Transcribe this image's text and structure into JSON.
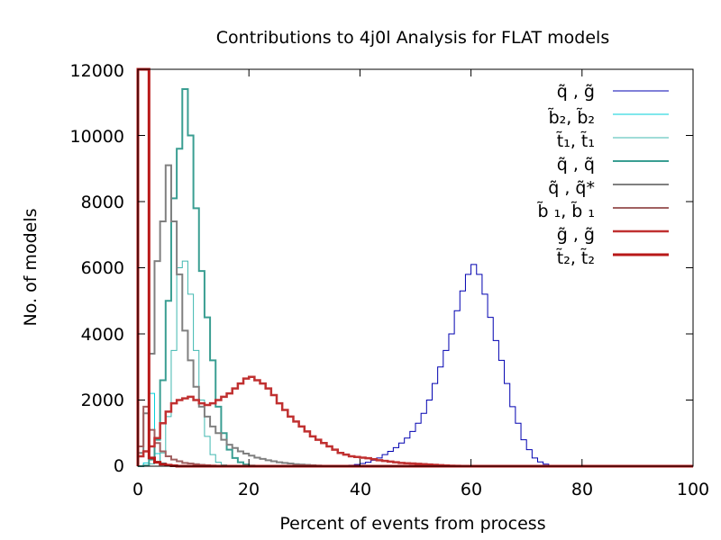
{
  "chart_data": {
    "type": "histogram",
    "title": "Contributions to 4j0l Analysis for FLAT models",
    "xlabel": "Percent of events from process",
    "ylabel": "No. of models",
    "xlim": [
      0,
      100
    ],
    "ylim": [
      0,
      12000
    ],
    "xticks": [
      "0",
      "20",
      "40",
      "60",
      "80",
      "100"
    ],
    "yticks": [
      "0",
      "2000",
      "4000",
      "6000",
      "8000",
      "10000",
      "12000"
    ],
    "bin_width": 1,
    "legend_position": "top-right",
    "series": [
      {
        "name": "q̃ , g̃",
        "label": "q̃ , g̃",
        "color": "#0000b0",
        "stroke": 1,
        "start": 37,
        "values": [
          20,
          30,
          50,
          80,
          120,
          180,
          250,
          350,
          450,
          560,
          700,
          850,
          1050,
          1300,
          1600,
          2000,
          2500,
          3000,
          3500,
          4000,
          4700,
          5300,
          5800,
          6100,
          5800,
          5200,
          4500,
          3800,
          3200,
          2500,
          1800,
          1300,
          800,
          500,
          250,
          130,
          60
        ]
      },
      {
        "name": "b̃2, b̃2",
        "label": "b̃₂, b̃₂",
        "color": "#00cfd8",
        "stroke": 1,
        "start": 0,
        "values": [
          0,
          100,
          2200,
          380,
          100,
          40,
          10
        ]
      },
      {
        "name": "t̃1, t̃1",
        "label": "t̃₁, t̃₁",
        "color": "#40b8b0",
        "stroke": 1,
        "start": 0,
        "values": [
          0,
          30,
          70,
          150,
          400,
          1500,
          3500,
          6000,
          6200,
          5200,
          3500,
          2000,
          900,
          350,
          120,
          40,
          10
        ]
      },
      {
        "name": "q̃ , q̃",
        "label": "q̃ , q̃",
        "color": "#3a9e92",
        "stroke": 2,
        "start": 0,
        "values": [
          0,
          20,
          200,
          800,
          2600,
          5000,
          8100,
          9600,
          11400,
          10000,
          7800,
          5900,
          4500,
          3200,
          1800,
          1000,
          500,
          250,
          120,
          50,
          20
        ]
      },
      {
        "name": "q̃ , q̃*",
        "label": "q̃ , q̃*",
        "color": "#808080",
        "stroke": 2,
        "start": 0,
        "values": [
          400,
          1600,
          3400,
          6200,
          7400,
          9100,
          7400,
          5800,
          4100,
          3200,
          2400,
          1800,
          1500,
          1200,
          1000,
          800,
          650,
          550,
          450,
          380,
          320,
          260,
          220,
          180,
          150,
          120,
          100,
          80,
          60,
          50,
          40,
          30,
          20
        ]
      },
      {
        "name": "b̃1, b̃1",
        "label": "b̃ ₁, b̃ ₁",
        "color": "#a06060",
        "stroke": 2,
        "start": 0,
        "values": [
          600,
          1800,
          1100,
          700,
          450,
          300,
          200,
          150,
          100,
          80,
          60,
          40,
          30,
          20
        ]
      },
      {
        "name": "g̃ , g̃",
        "label": "g̃ , g̃",
        "color": "#c03030",
        "stroke": 2.5,
        "start": 0,
        "values": [
          300,
          450,
          600,
          850,
          1300,
          1650,
          1900,
          2000,
          2050,
          2100,
          2000,
          1900,
          1850,
          1900,
          2000,
          2100,
          2200,
          2350,
          2500,
          2650,
          2700,
          2600,
          2500,
          2350,
          2150,
          1900,
          1700,
          1500,
          1350,
          1200,
          1050,
          900,
          800,
          700,
          600,
          500,
          400,
          350,
          300,
          280,
          260,
          240,
          210,
          180,
          160,
          140,
          120,
          100,
          90,
          80,
          70,
          60,
          50,
          40,
          30,
          20,
          15,
          10,
          5
        ]
      },
      {
        "name": "t̃2, t̃2",
        "label": "t̃₂, t̃₂",
        "color": "#b81818",
        "stroke": 3,
        "start": 0,
        "values": [
          12500,
          12500,
          250,
          120,
          60,
          30,
          15
        ]
      }
    ]
  }
}
